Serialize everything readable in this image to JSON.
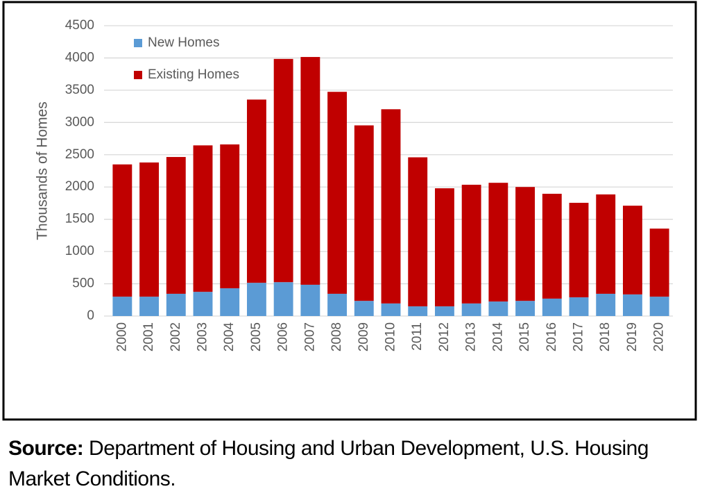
{
  "chart_data": {
    "type": "bar",
    "stacked": true,
    "y_label": "Thousands of Homes",
    "categories": [
      "2000",
      "2001",
      "2002",
      "2003",
      "2004",
      "2005",
      "2006",
      "2007",
      "2008",
      "2009",
      "2010",
      "2011",
      "2012",
      "2013",
      "2014",
      "2015",
      "2016",
      "2017",
      "2018",
      "2019",
      "2020"
    ],
    "series": [
      {
        "name": "New Homes",
        "color": "#5b9bd5",
        "values": [
          300,
          300,
          345,
          375,
          430,
          515,
          525,
          485,
          345,
          235,
          195,
          150,
          150,
          195,
          225,
          235,
          270,
          290,
          345,
          335,
          300
        ]
      },
      {
        "name": "Existing Homes",
        "color": "#c00000",
        "values": [
          2050,
          2080,
          2120,
          2270,
          2230,
          2840,
          3460,
          3530,
          3130,
          2720,
          3010,
          2310,
          1830,
          1840,
          1840,
          1765,
          1625,
          1465,
          1540,
          1375,
          1055
        ]
      }
    ],
    "ylim": [
      0,
      4500
    ],
    "yticks": [
      0,
      500,
      1000,
      1500,
      2000,
      2500,
      3000,
      3500,
      4000,
      4500
    ],
    "grid": true,
    "legend": "upper left"
  },
  "source": {
    "label": "Source:",
    "text": "Department of Housing and Urban Development, U.S. Housing Market Conditions."
  }
}
